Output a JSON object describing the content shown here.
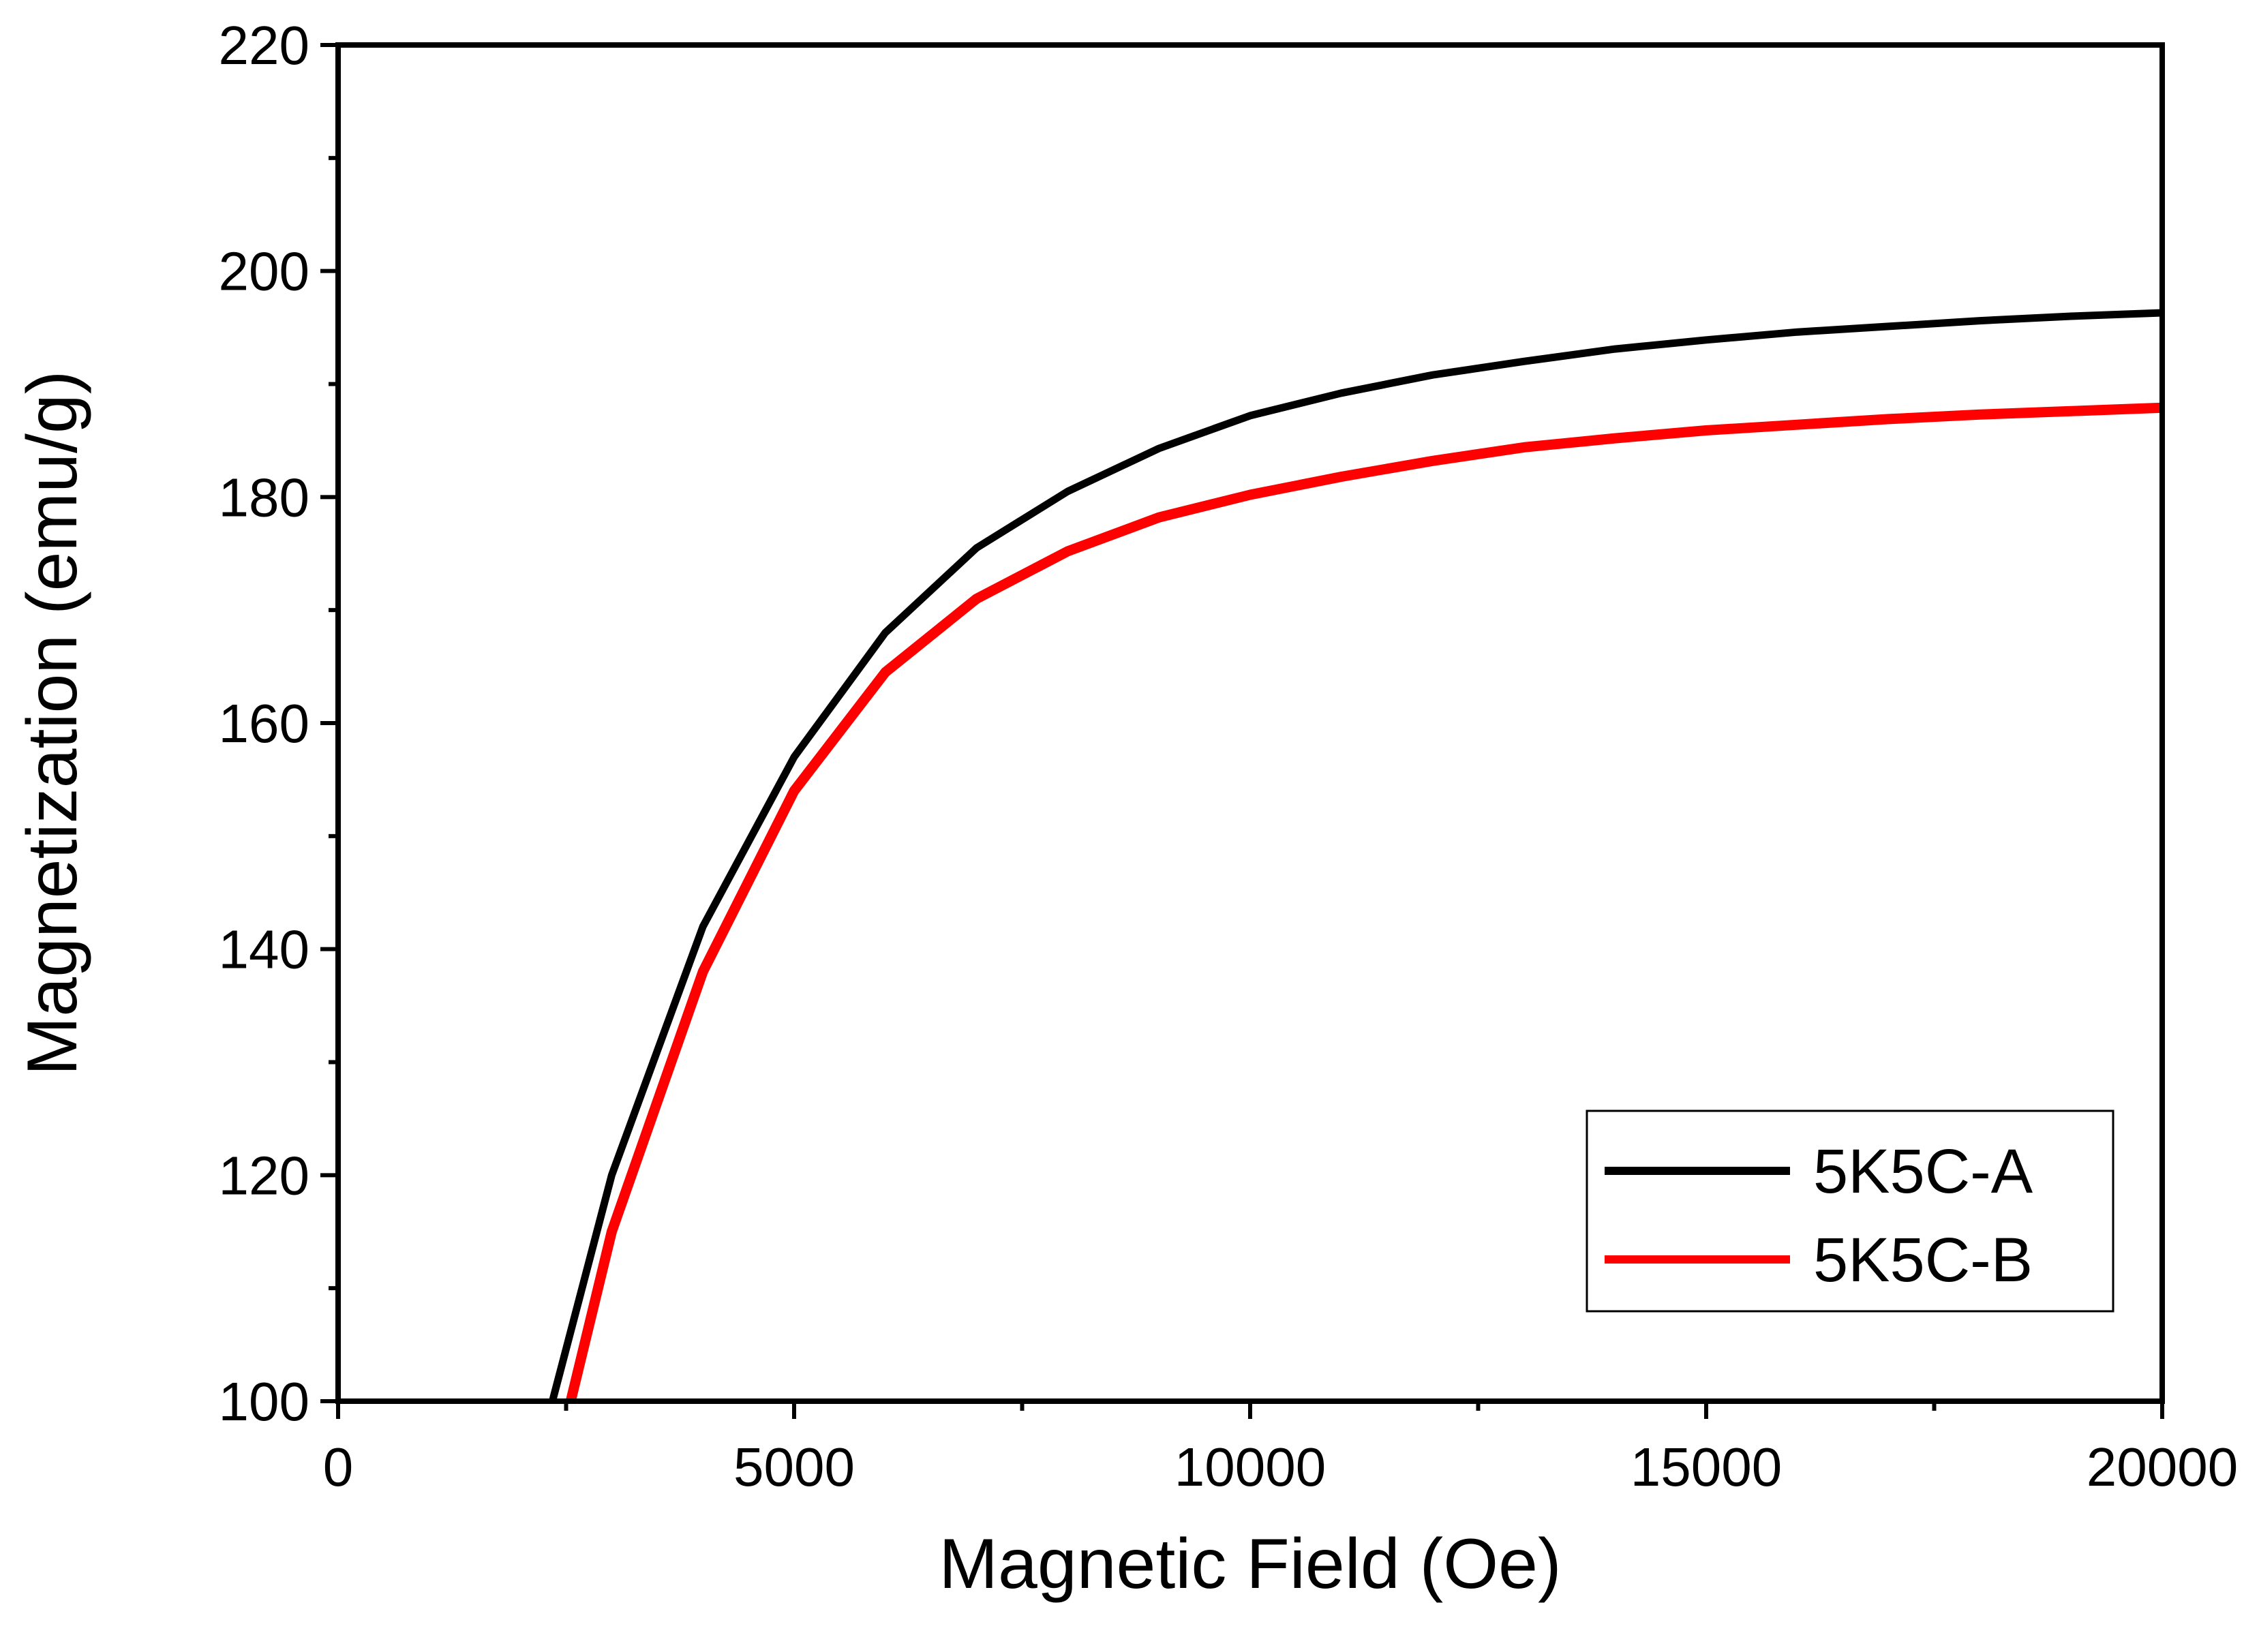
{
  "chart_data": {
    "type": "line",
    "title": "",
    "xlabel": "Magnetic Field (Oe)",
    "ylabel": "Magnetization (emu/g)",
    "xlim": [
      0,
      20000
    ],
    "ylim": [
      100,
      220
    ],
    "x_ticks": [
      0,
      5000,
      10000,
      15000,
      20000
    ],
    "x_tick_labels": [
      "0",
      "5000",
      "10000",
      "15000",
      "20000"
    ],
    "y_ticks": [
      100,
      120,
      140,
      160,
      180,
      200,
      220
    ],
    "y_tick_labels": [
      "100",
      "120",
      "140",
      "160",
      "180",
      "200",
      "220"
    ],
    "grid": false,
    "legend_position": "bottom-right",
    "series": [
      {
        "name": "5K5C-A",
        "color": "#000000",
        "x": [
          2350,
          3000,
          4000,
          5000,
          6000,
          7000,
          8000,
          9000,
          10000,
          11000,
          12000,
          13000,
          14000,
          15000,
          16000,
          17000,
          18000,
          19000,
          20000
        ],
        "y": [
          100,
          120,
          142,
          157,
          168,
          175.5,
          180.5,
          184.3,
          187.2,
          189.2,
          190.8,
          192.0,
          193.1,
          193.9,
          194.6,
          195.1,
          195.6,
          196.0,
          196.3
        ]
      },
      {
        "name": "5K5C-B",
        "color": "#ff0000",
        "x": [
          2550,
          3000,
          4000,
          5000,
          6000,
          7000,
          8000,
          9000,
          10000,
          11000,
          12000,
          13000,
          14000,
          15000,
          16000,
          17000,
          18000,
          19000,
          20000
        ],
        "y": [
          100,
          115,
          138,
          154,
          164.5,
          171,
          175.2,
          178.2,
          180.2,
          181.8,
          183.2,
          184.4,
          185.2,
          185.9,
          186.4,
          186.9,
          187.3,
          187.6,
          187.9
        ]
      }
    ]
  }
}
